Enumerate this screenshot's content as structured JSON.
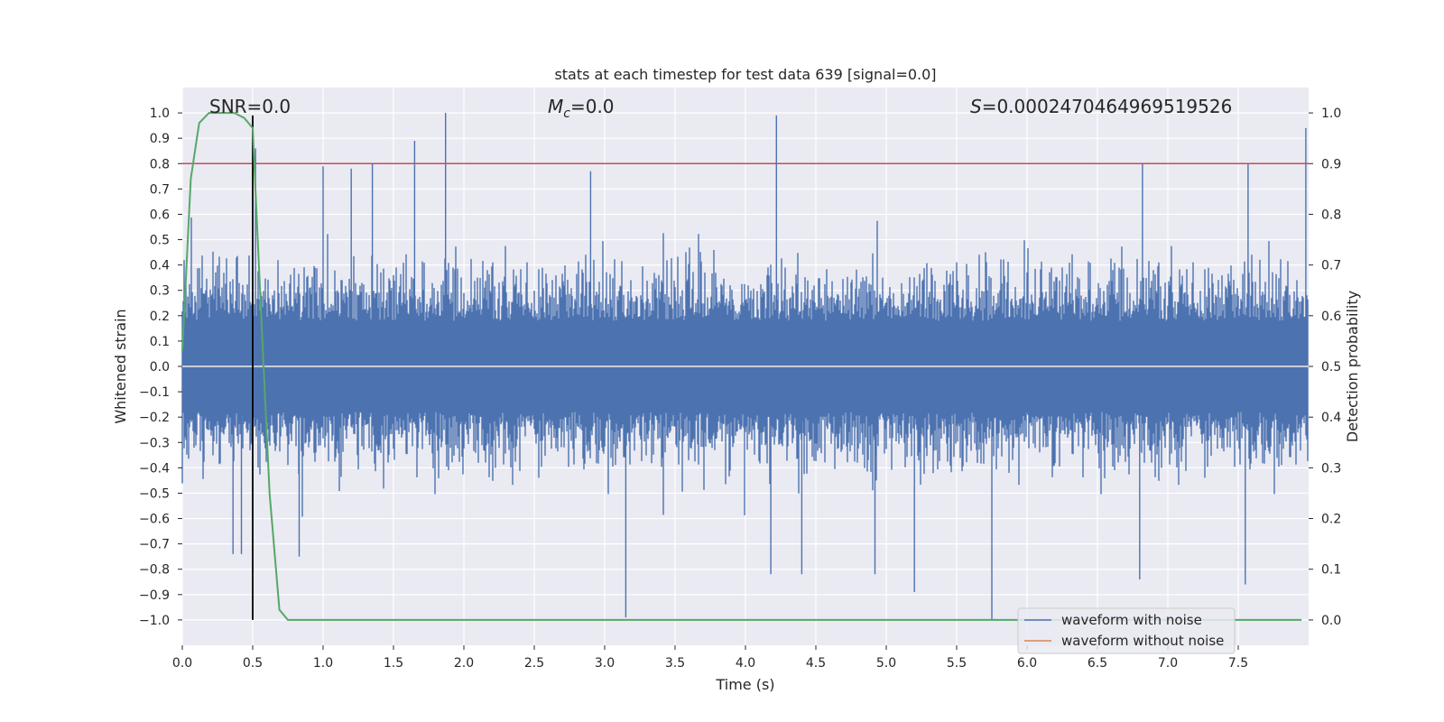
{
  "chart_data": {
    "type": "line",
    "title": "stats at each timestep for test data 639 [signal=0.0]",
    "xlabel": "Time (s)",
    "ylabel": "Whitened strain",
    "y2label": "Detection probability",
    "xlim": [
      0.0,
      8.0
    ],
    "ylim": [
      -1.1,
      1.1
    ],
    "y2lim": [
      -0.05,
      1.05
    ],
    "grid": true,
    "x_ticks": [
      "0.0",
      "0.5",
      "1.0",
      "1.5",
      "2.0",
      "2.5",
      "3.0",
      "3.5",
      "4.0",
      "4.5",
      "5.0",
      "5.5",
      "6.0",
      "6.5",
      "7.0",
      "7.5"
    ],
    "y_ticks": [
      "1.0",
      "0.9",
      "0.8",
      "0.7",
      "0.6",
      "0.5",
      "0.4",
      "0.3",
      "0.2",
      "0.1",
      "0.0",
      "−0.1",
      "−0.2",
      "−0.3",
      "−0.4",
      "−0.5",
      "−0.6",
      "−0.7",
      "−0.8",
      "−0.9",
      "−1.0"
    ],
    "y2_ticks": [
      "1.0",
      "0.9",
      "0.8",
      "0.7",
      "0.6",
      "0.5",
      "0.4",
      "0.3",
      "0.2",
      "0.1",
      "0.0"
    ],
    "annotations": {
      "snr": "SNR=0.0",
      "mc_symbol": "M",
      "mc_sub": "c",
      "mc_value": "=0.0",
      "s_symbol": "S",
      "s_value": "=0.0002470464969519526"
    },
    "threshold": {
      "value": 0.8,
      "axis": "y",
      "color": "#c44e52"
    },
    "marker_time": 0.5,
    "noise": {
      "name": "waveform with noise",
      "color": "#4c72b0",
      "duration_s": 8.0,
      "approx_amplitude": 0.5,
      "min": -1.0,
      "max": 1.0
    },
    "clean": {
      "name": "waveform without noise",
      "color": "#dd8452",
      "values_constant": 0.0
    },
    "probability": {
      "color": "#55a868",
      "t": [
        0.0,
        0.06,
        0.12,
        0.19,
        0.25,
        0.31,
        0.37,
        0.44,
        0.5,
        0.56,
        0.62,
        0.69,
        0.75,
        7.95
      ],
      "p": [
        0.53,
        0.87,
        0.98,
        1.0,
        1.0,
        1.0,
        1.0,
        0.99,
        0.97,
        0.6,
        0.25,
        0.02,
        0.0,
        0.0
      ]
    },
    "spikes": [
      {
        "t": 0.52,
        "v": 0.86
      },
      {
        "t": 1.0,
        "v": 0.79
      },
      {
        "t": 1.2,
        "v": 0.78
      },
      {
        "t": 1.35,
        "v": 0.8
      },
      {
        "t": 1.65,
        "v": 0.89
      },
      {
        "t": 1.87,
        "v": 1.0
      },
      {
        "t": 2.9,
        "v": 0.77
      },
      {
        "t": 4.22,
        "v": 0.99
      },
      {
        "t": 6.82,
        "v": 0.8
      },
      {
        "t": 7.57,
        "v": 0.8
      },
      {
        "t": 7.98,
        "v": 0.94
      },
      {
        "t": 0.36,
        "v": -0.74
      },
      {
        "t": 0.42,
        "v": -0.74
      },
      {
        "t": 0.83,
        "v": -0.75
      },
      {
        "t": 3.15,
        "v": -0.99
      },
      {
        "t": 4.18,
        "v": -0.82
      },
      {
        "t": 4.4,
        "v": -0.82
      },
      {
        "t": 4.92,
        "v": -0.82
      },
      {
        "t": 5.2,
        "v": -0.89
      },
      {
        "t": 5.75,
        "v": -1.0
      },
      {
        "t": 6.8,
        "v": -0.84
      },
      {
        "t": 7.55,
        "v": -0.86
      }
    ]
  },
  "legend": {
    "items": [
      {
        "label": "waveform with noise",
        "color": "#4c72b0"
      },
      {
        "label": "waveform without noise",
        "color": "#dd8452"
      }
    ]
  }
}
